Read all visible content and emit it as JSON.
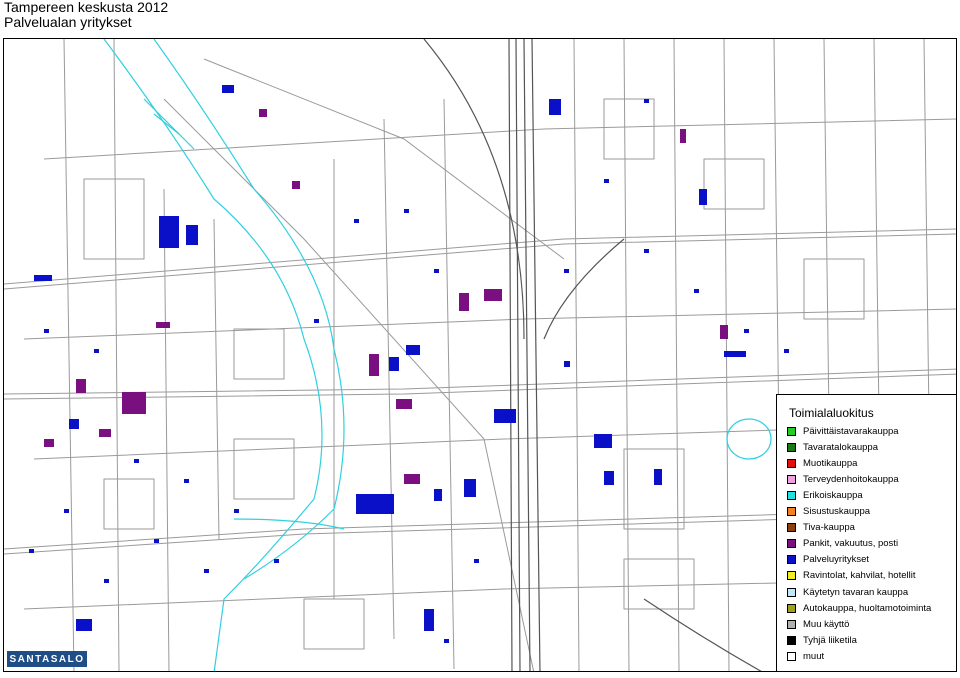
{
  "title": {
    "line1": "Tampereen keskusta 2012",
    "line2": "Palvelualan yritykset"
  },
  "logo": {
    "text": "SANTASALO"
  },
  "legend": {
    "title": "Toimialaluokitus",
    "items": [
      {
        "label": "Päivittäistavarakauppa",
        "color": "#22cc22"
      },
      {
        "label": "Tavaratalokauppa",
        "color": "#1a7a1a"
      },
      {
        "label": "Muotikauppa",
        "color": "#e01010"
      },
      {
        "label": "Terveydenhoitokauppa",
        "color": "#f0a0e0"
      },
      {
        "label": "Erikoiskauppa",
        "color": "#20e0e0"
      },
      {
        "label": "Sisustuskauppa",
        "color": "#f08020"
      },
      {
        "label": "Tiva-kauppa",
        "color": "#8b4010"
      },
      {
        "label": "Pankit, vakuutus, posti",
        "color": "#7a1080"
      },
      {
        "label": "Palveluyritykset",
        "color": "#0a10c8"
      },
      {
        "label": "Ravintolat, kahvilat, hotellit",
        "color": "#f0f020"
      },
      {
        "label": "Käytetyn tavaran kauppa",
        "color": "#c0e8f8"
      },
      {
        "label": "Autokauppa, huoltamotoiminta",
        "color": "#a0a020"
      },
      {
        "label": "Muu käyttö",
        "color": "#b0b0b0"
      },
      {
        "label": "Tyhjä liiketila",
        "color": "#000000"
      },
      {
        "label": "muut",
        "color": "#ffffff"
      }
    ]
  }
}
